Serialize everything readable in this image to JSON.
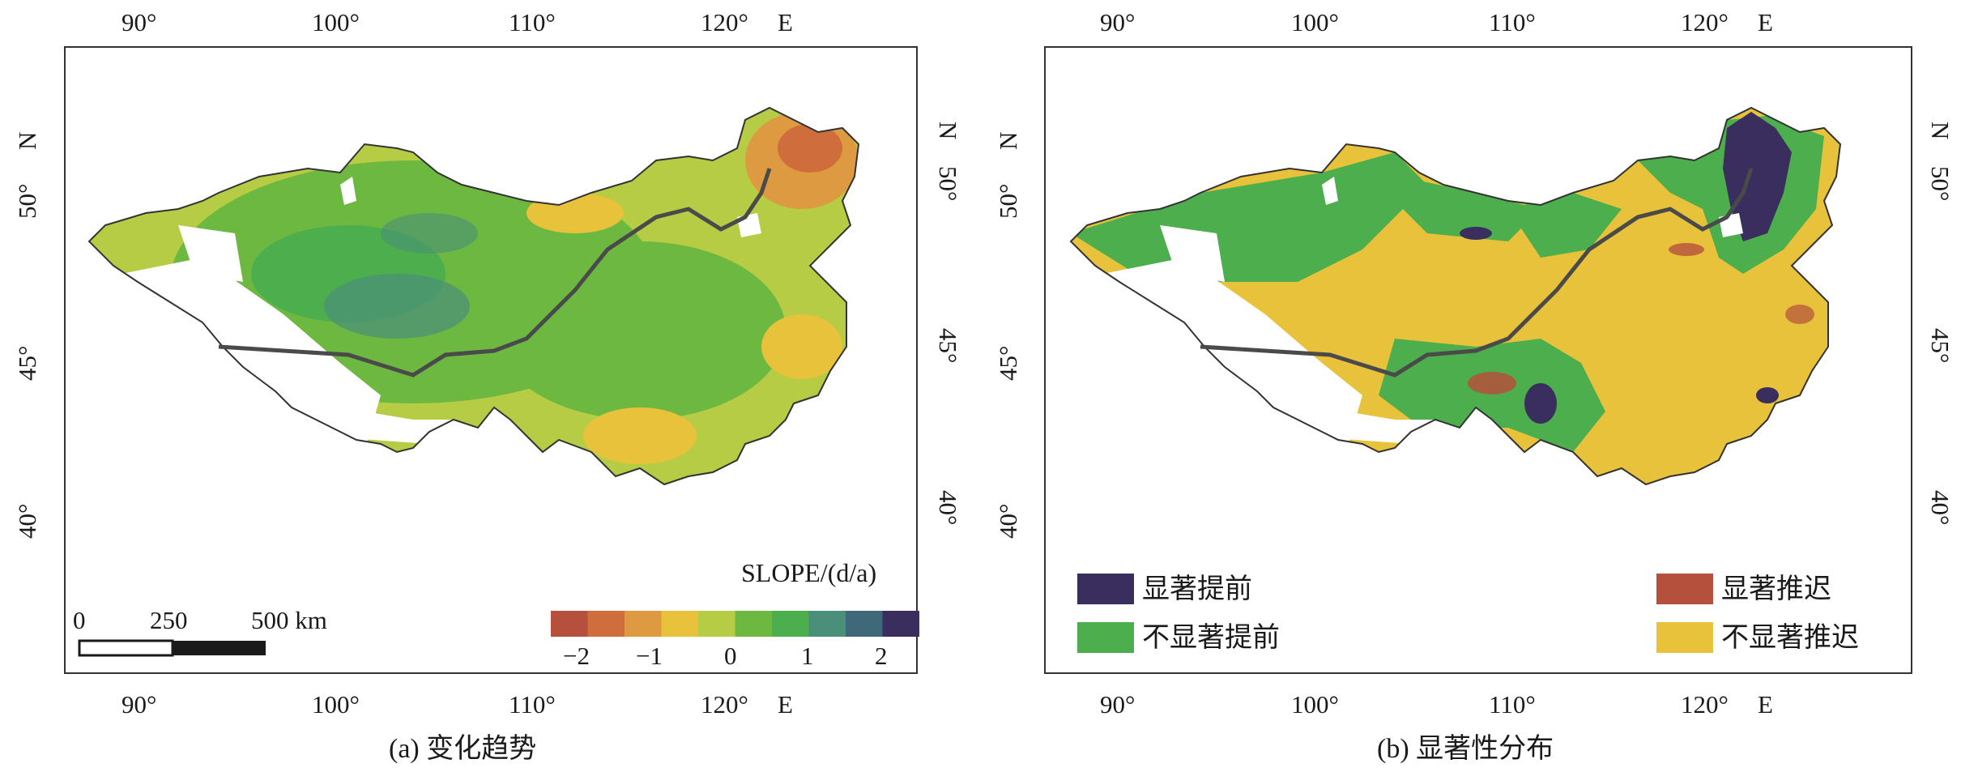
{
  "colors": {
    "sig_advance": "#3a2e5e",
    "nonsig_advance": "#4cae4c",
    "sig_delay": "#b5503c",
    "nonsig_delay": "#e8c23a",
    "boundary": "#4a4a4a",
    "frame": "#333333"
  },
  "panel_a": {
    "caption": "(a) 变化趋势",
    "top_ticks": [
      "90°",
      "100°",
      "110°",
      "120°"
    ],
    "top_axis_unit": "E",
    "bottom_ticks": [
      "90°",
      "100°",
      "110°",
      "120°"
    ],
    "bottom_axis_unit": "E",
    "left_ticks": [
      "50°",
      "45°",
      "40°"
    ],
    "left_axis_unit": "N",
    "right_ticks": [
      "50°",
      "45°",
      "40°"
    ],
    "right_axis_unit": "N",
    "colorbar": {
      "title": "SLOPE/(d/a)",
      "tick_labels": [
        "−2",
        "−1",
        "0",
        "1",
        "2"
      ],
      "colors": [
        "#b5503c",
        "#cf6e3c",
        "#de9a40",
        "#e8c23a",
        "#b6cc44",
        "#6db840",
        "#4cae4c",
        "#4a8f7a",
        "#3f6878",
        "#3a2e5e"
      ]
    },
    "scalebar": {
      "labels": [
        "0",
        "250",
        "500 km"
      ]
    }
  },
  "panel_b": {
    "caption": "(b) 显著性分布",
    "top_ticks": [
      "90°",
      "100°",
      "110°",
      "120°"
    ],
    "top_axis_unit": "E",
    "bottom_ticks": [
      "90°",
      "100°",
      "110°",
      "120°"
    ],
    "bottom_axis_unit": "E",
    "left_ticks": [
      "50°",
      "45°",
      "40°"
    ],
    "left_axis_unit": "N",
    "right_ticks": [
      "50°",
      "45°",
      "40°"
    ],
    "right_axis_unit": "N",
    "legend": [
      {
        "label": "显著提前",
        "color_key": "sig_advance"
      },
      {
        "label": "不显著提前",
        "color_key": "nonsig_advance"
      },
      {
        "label": "显著推迟",
        "color_key": "sig_delay"
      },
      {
        "label": "不显著推迟",
        "color_key": "nonsig_delay"
      }
    ]
  }
}
